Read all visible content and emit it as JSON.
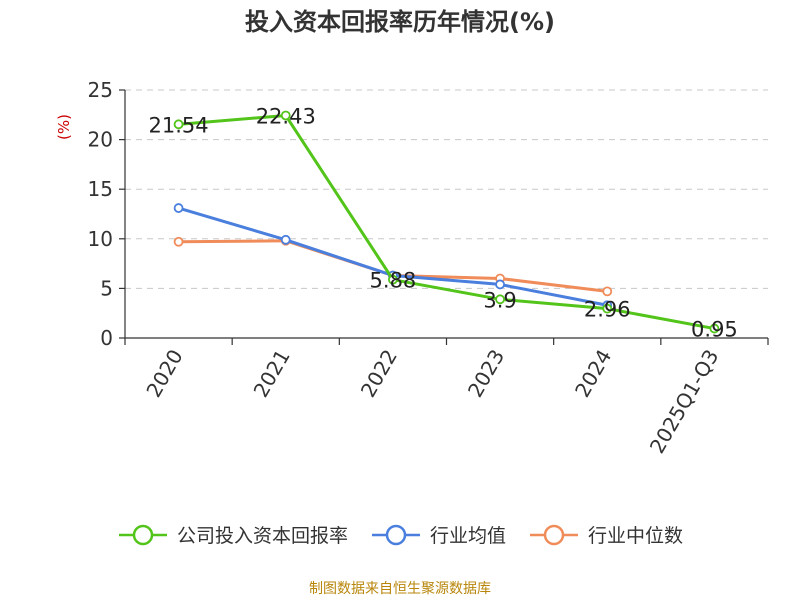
{
  "chart_title": "投入资本回报率历年情况(%)",
  "footer_source": "制图数据来自恒生聚源数据库",
  "chart_data": {
    "type": "line",
    "title": "投入资本回报率历年情况(%)",
    "ylabel": "(%)",
    "xlabel": "",
    "categories": [
      "2020",
      "2021",
      "2022",
      "2023",
      "2024",
      "2025Q1-Q3"
    ],
    "ylim": [
      0,
      25
    ],
    "yticks": [
      0,
      5,
      10,
      15,
      20,
      25
    ],
    "grid": true,
    "legend_position": "bottom",
    "series": [
      {
        "name": "公司投入资本回报率",
        "color": "#52c41a",
        "values": [
          21.54,
          22.43,
          5.88,
          3.9,
          2.96,
          0.95
        ],
        "labels": [
          "21.54",
          "22.43",
          "5.88",
          "3.9",
          "2.96",
          "0.95"
        ]
      },
      {
        "name": "行业均值",
        "color": "#4a7fdd",
        "values": [
          13.1,
          9.9,
          6.3,
          5.4,
          3.3,
          null
        ]
      },
      {
        "name": "行业中位数",
        "color": "#f08c5a",
        "values": [
          9.7,
          9.8,
          6.3,
          6.0,
          4.7,
          null
        ]
      }
    ]
  }
}
